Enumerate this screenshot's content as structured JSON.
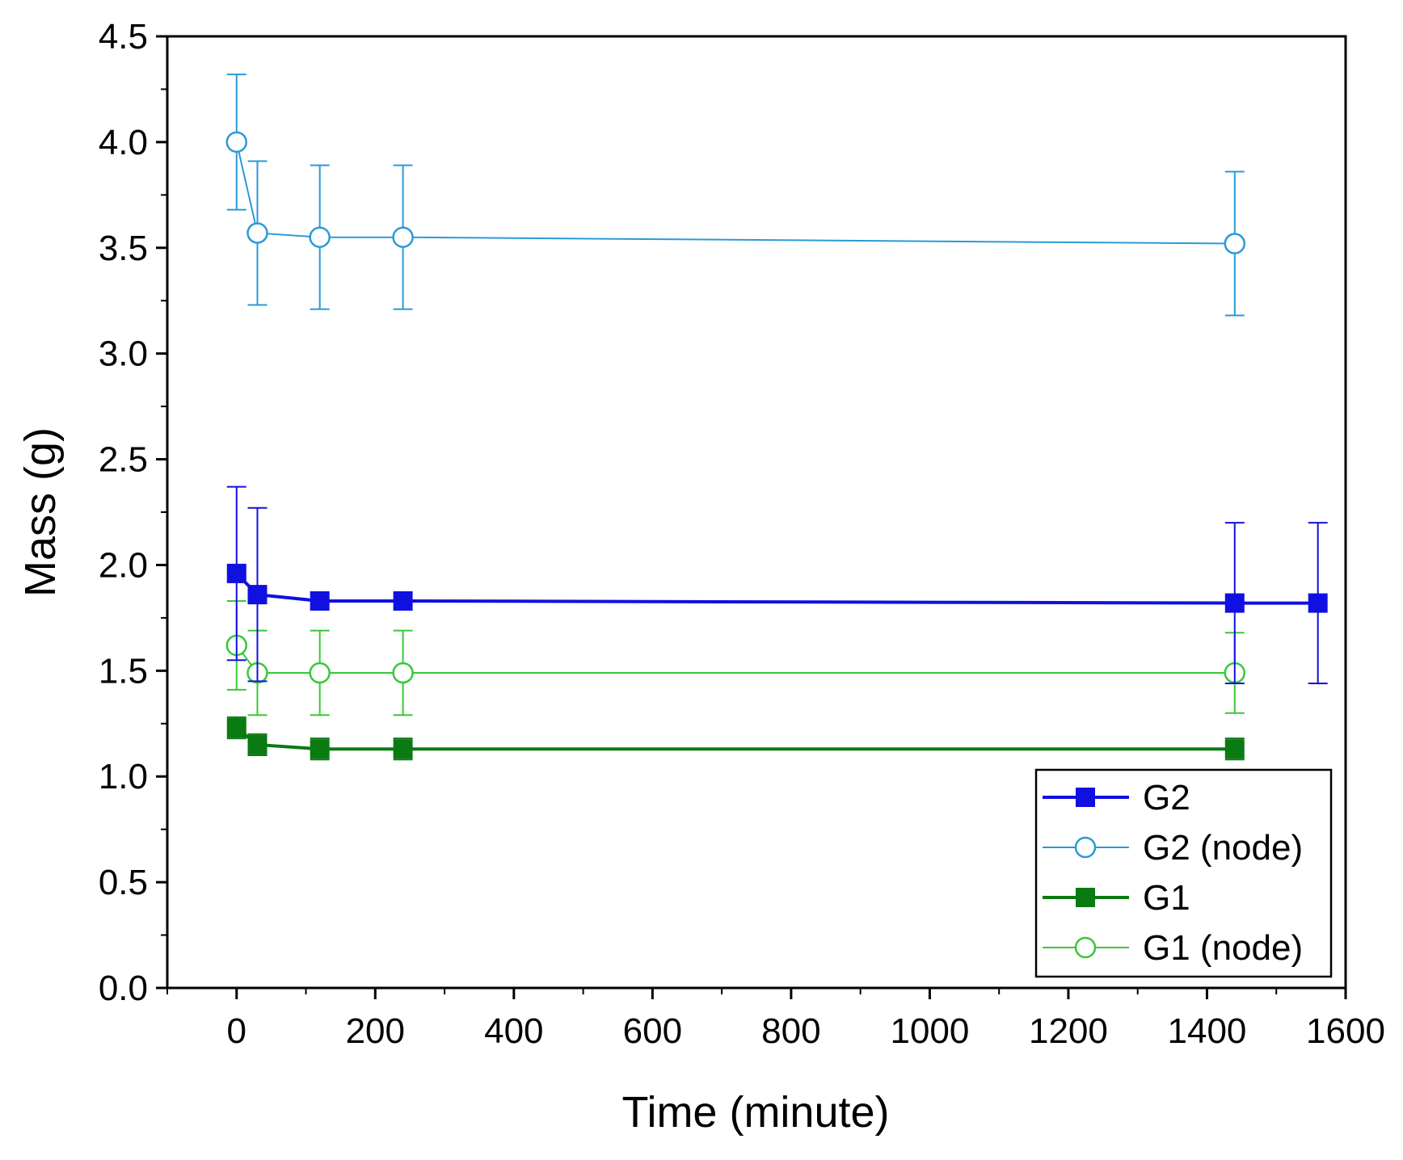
{
  "chart_data": {
    "type": "line",
    "title": "",
    "xlabel": "Time (minute)",
    "ylabel": "Mass (g)",
    "xlim": [
      -100,
      1600
    ],
    "ylim": [
      0,
      4.5
    ],
    "xticks": [
      0,
      200,
      400,
      600,
      800,
      1000,
      1200,
      1400,
      1600
    ],
    "xtick_labels": [
      "0",
      "200",
      "400",
      "600",
      "800",
      "1000",
      "1200",
      "1400",
      "1600"
    ],
    "yticks": [
      0.0,
      0.5,
      1.0,
      1.5,
      2.0,
      2.5,
      3.0,
      3.5,
      4.0,
      4.5
    ],
    "ytick_labels": [
      "0.0",
      "0.5",
      "1.0",
      "1.5",
      "2.0",
      "2.5",
      "3.0",
      "3.5",
      "4.0",
      "4.5"
    ],
    "grid": false,
    "legend_position": "bottom-right",
    "series": [
      {
        "name": "G2",
        "color": "#1010e0",
        "marker": "square-filled",
        "line_width": 4,
        "x": [
          0,
          30,
          120,
          240,
          1440,
          1560
        ],
        "y": [
          1.96,
          1.86,
          1.83,
          1.83,
          1.82,
          1.82
        ],
        "err": [
          0.41,
          0.41,
          0,
          0,
          0.38,
          0.38
        ]
      },
      {
        "name": "G2 (node)",
        "color": "#2a9ad8",
        "marker": "circle-open",
        "line_width": 2,
        "x": [
          0,
          30,
          120,
          240,
          1440
        ],
        "y": [
          4.0,
          3.57,
          3.55,
          3.55,
          3.52
        ],
        "err": [
          0.32,
          0.34,
          0.34,
          0.34,
          0.34
        ]
      },
      {
        "name": "G1",
        "color": "#0a7a12",
        "marker": "square-filled",
        "line_width": 4,
        "x": [
          0,
          30,
          120,
          240,
          1440
        ],
        "y": [
          1.23,
          1.15,
          1.13,
          1.13,
          1.13
        ],
        "err": [
          0.05,
          0.05,
          0.05,
          0.05,
          0.05
        ]
      },
      {
        "name": "G1 (node)",
        "color": "#38c838",
        "marker": "circle-open",
        "line_width": 2,
        "x": [
          0,
          30,
          120,
          240,
          1440
        ],
        "y": [
          1.62,
          1.49,
          1.49,
          1.49,
          1.49
        ],
        "err": [
          0.21,
          0.2,
          0.2,
          0.2,
          0.19
        ]
      }
    ]
  }
}
